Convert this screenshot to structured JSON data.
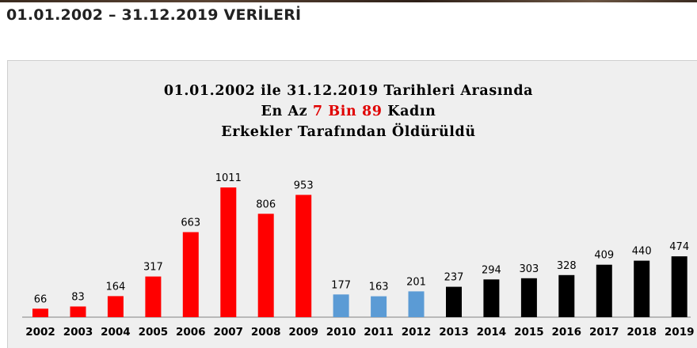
{
  "page_heading": "01.01.2002 – 31.12.2019 VERİLERİ",
  "chart_data": {
    "type": "bar",
    "title_lines": [
      "01.01.2002 ile 31.12.2019 Tarihleri Arasında",
      {
        "before": "En Az ",
        "highlight": "7 Bin 89",
        "after": " Kadın"
      },
      "Erkekler Tarafından Öldürüldü"
    ],
    "categories": [
      "2002",
      "2003",
      "2004",
      "2005",
      "2006",
      "2007",
      "2008",
      "2009",
      "2010",
      "2011",
      "2012",
      "2013",
      "2014",
      "2015",
      "2016",
      "2017",
      "2018",
      "2019"
    ],
    "values": [
      66,
      83,
      164,
      317,
      663,
      1011,
      806,
      953,
      177,
      163,
      201,
      237,
      294,
      303,
      328,
      409,
      440,
      474
    ],
    "bar_colors": [
      "#ff0000",
      "#ff0000",
      "#ff0000",
      "#ff0000",
      "#ff0000",
      "#ff0000",
      "#ff0000",
      "#ff0000",
      "#5b9bd5",
      "#5b9bd5",
      "#5b9bd5",
      "#000000",
      "#000000",
      "#000000",
      "#000000",
      "#000000",
      "#000000",
      "#000000"
    ],
    "ylim": [
      0,
      1011
    ],
    "grid": false,
    "legend": "none",
    "title_highlight_color": "#e00000",
    "panel_background": "#efefef"
  }
}
